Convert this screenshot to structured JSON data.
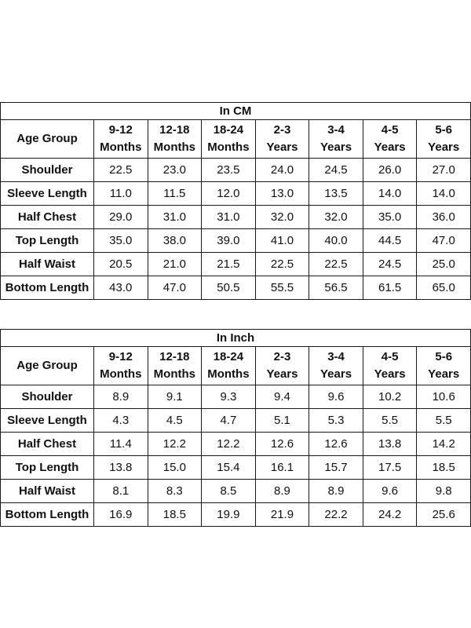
{
  "tables": [
    {
      "title": "In CM",
      "corner_label": "Age Group",
      "columns": [
        {
          "top": "9-12",
          "bottom": "Months"
        },
        {
          "top": "12-18",
          "bottom": "Months"
        },
        {
          "top": "18-24",
          "bottom": "Months"
        },
        {
          "top": "2-3",
          "bottom": "Years"
        },
        {
          "top": "3-4",
          "bottom": "Years"
        },
        {
          "top": "4-5",
          "bottom": "Years"
        },
        {
          "top": "5-6",
          "bottom": "Years"
        }
      ],
      "rows": [
        {
          "label": "Shoulder",
          "values": [
            "22.5",
            "23.0",
            "23.5",
            "24.0",
            "24.5",
            "26.0",
            "27.0"
          ]
        },
        {
          "label": "Sleeve Length",
          "values": [
            "11.0",
            "11.5",
            "12.0",
            "13.0",
            "13.5",
            "14.0",
            "14.0"
          ]
        },
        {
          "label": "Half Chest",
          "values": [
            "29.0",
            "31.0",
            "31.0",
            "32.0",
            "32.0",
            "35.0",
            "36.0"
          ]
        },
        {
          "label": "Top Length",
          "values": [
            "35.0",
            "38.0",
            "39.0",
            "41.0",
            "40.0",
            "44.5",
            "47.0"
          ]
        },
        {
          "label": "Half Waist",
          "values": [
            "20.5",
            "21.0",
            "21.5",
            "22.5",
            "22.5",
            "24.5",
            "25.0"
          ]
        },
        {
          "label": "Bottom Length",
          "values": [
            "43.0",
            "47.0",
            "50.5",
            "55.5",
            "56.5",
            "61.5",
            "65.0"
          ]
        }
      ]
    },
    {
      "title": "In Inch",
      "corner_label": "Age Group",
      "columns": [
        {
          "top": "9-12",
          "bottom": "Months"
        },
        {
          "top": "12-18",
          "bottom": "Months"
        },
        {
          "top": "18-24",
          "bottom": "Months"
        },
        {
          "top": "2-3",
          "bottom": "Years"
        },
        {
          "top": "3-4",
          "bottom": "Years"
        },
        {
          "top": "4-5",
          "bottom": "Years"
        },
        {
          "top": "5-6",
          "bottom": "Years"
        }
      ],
      "rows": [
        {
          "label": "Shoulder",
          "values": [
            "8.9",
            "9.1",
            "9.3",
            "9.4",
            "9.6",
            "10.2",
            "10.6"
          ]
        },
        {
          "label": "Sleeve Length",
          "values": [
            "4.3",
            "4.5",
            "4.7",
            "5.1",
            "5.3",
            "5.5",
            "5.5"
          ]
        },
        {
          "label": "Half Chest",
          "values": [
            "11.4",
            "12.2",
            "12.2",
            "12.6",
            "12.6",
            "13.8",
            "14.2"
          ]
        },
        {
          "label": "Top Length",
          "values": [
            "13.8",
            "15.0",
            "15.4",
            "16.1",
            "15.7",
            "17.5",
            "18.5"
          ]
        },
        {
          "label": "Half Waist",
          "values": [
            "8.1",
            "8.3",
            "8.5",
            "8.9",
            "8.9",
            "9.6",
            "9.8"
          ]
        },
        {
          "label": "Bottom Length",
          "values": [
            "16.9",
            "18.5",
            "19.9",
            "21.9",
            "22.2",
            "24.2",
            "25.6"
          ]
        }
      ]
    }
  ]
}
